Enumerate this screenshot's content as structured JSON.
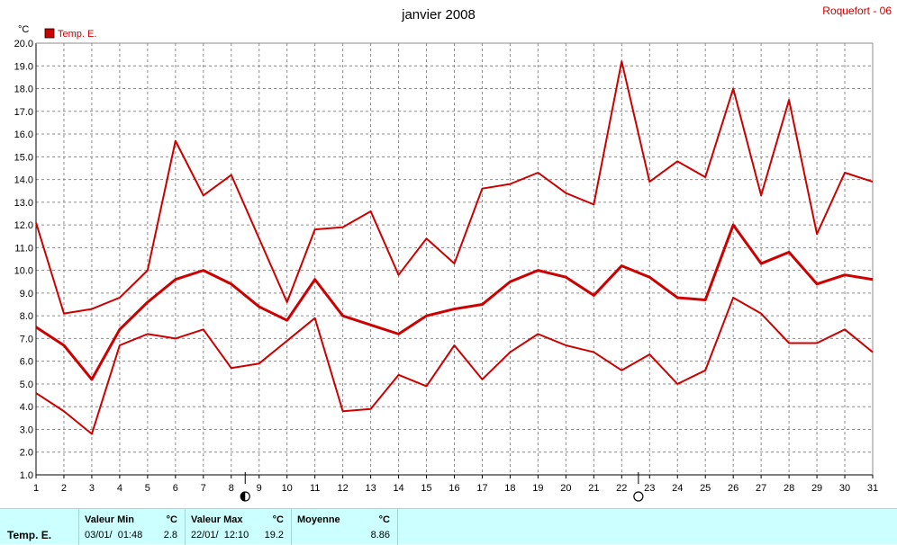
{
  "title": "janvier 2008",
  "site": "Roquefort - 06",
  "colors": {
    "series": "#cc0000",
    "grid": "#8c8c8c",
    "panel": "#ccffff",
    "site": "#cc0000"
  },
  "chart_data": {
    "type": "line",
    "title": "janvier 2008",
    "ylabel": "°C",
    "ylim": [
      1.0,
      20.0
    ],
    "yticks": [
      "1.0",
      "2.0",
      "3.0",
      "4.0",
      "5.0",
      "6.0",
      "7.0",
      "8.0",
      "9.0",
      "10.0",
      "11.0",
      "12.0",
      "13.0",
      "14.0",
      "15.0",
      "16.0",
      "17.0",
      "18.0",
      "19.0",
      "20.0"
    ],
    "x": [
      1,
      2,
      3,
      4,
      5,
      6,
      7,
      8,
      9,
      10,
      11,
      12,
      13,
      14,
      15,
      16,
      17,
      18,
      19,
      20,
      21,
      22,
      23,
      24,
      25,
      26,
      27,
      28,
      29,
      30,
      31
    ],
    "grid": true,
    "legend": [
      {
        "name": "Temp. E.",
        "color": "#cc0000"
      }
    ],
    "series": [
      {
        "name": "Temp. E.",
        "role": "max",
        "values": [
          12.1,
          8.1,
          8.3,
          8.8,
          10.0,
          15.7,
          13.3,
          14.2,
          11.4,
          8.6,
          11.8,
          11.9,
          12.6,
          9.8,
          11.4,
          10.3,
          13.6,
          13.8,
          14.3,
          13.4,
          12.9,
          19.2,
          13.9,
          14.8,
          14.1,
          18.0,
          13.3,
          17.5,
          11.6,
          14.3,
          13.9
        ]
      },
      {
        "name": "Temp. E.",
        "role": "mean",
        "values": [
          7.5,
          6.7,
          5.2,
          7.4,
          8.6,
          9.6,
          10.0,
          9.4,
          8.4,
          7.8,
          9.6,
          8.0,
          7.6,
          7.2,
          8.0,
          8.3,
          8.5,
          9.5,
          10.0,
          9.7,
          8.9,
          10.2,
          9.7,
          8.8,
          8.7,
          12.0,
          10.3,
          10.8,
          9.4,
          9.8,
          9.6
        ]
      },
      {
        "name": "Temp. E.",
        "role": "min",
        "values": [
          4.6,
          3.8,
          2.8,
          6.7,
          7.2,
          7.0,
          7.4,
          5.7,
          5.9,
          6.9,
          7.9,
          3.8,
          3.9,
          5.4,
          4.9,
          6.7,
          5.2,
          6.4,
          7.2,
          6.7,
          6.4,
          5.6,
          6.3,
          5.0,
          5.6,
          8.8,
          8.1,
          6.8,
          6.8,
          7.4,
          6.4
        ]
      }
    ],
    "moon_phases": [
      {
        "phase": "last-quarter",
        "x": 8.5
      },
      {
        "phase": "full",
        "x": 22.6
      }
    ]
  },
  "stats": {
    "series_label": "Temp. E.",
    "min": {
      "header": "Valeur Min",
      "unit": "°C",
      "when": "03/01/  01:48",
      "value": "2.8"
    },
    "max": {
      "header": "Valeur Max",
      "unit": "°C",
      "when": "22/01/  12:10",
      "value": "19.2"
    },
    "avg": {
      "header": "Moyenne",
      "unit": "°C",
      "value": "8.86"
    }
  }
}
